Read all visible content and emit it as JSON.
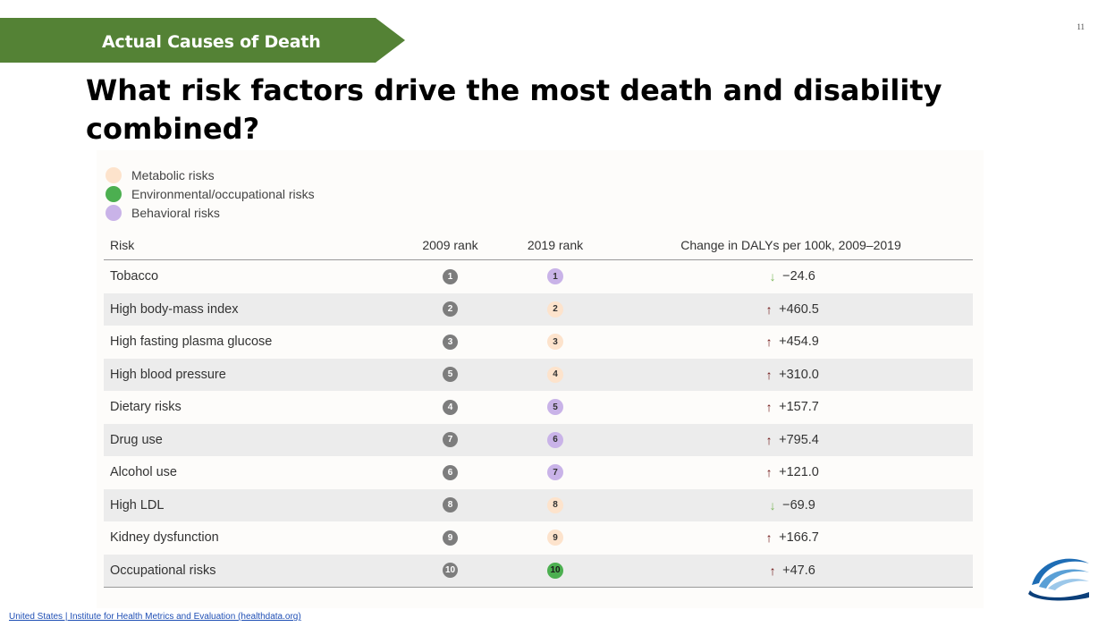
{
  "header": {
    "section_label": "Actual Causes of Death",
    "page_number": "11",
    "title": "What risk factors drive the most death and disability combined?"
  },
  "legend": [
    {
      "label": "Metabolic risks",
      "color": "#fde3cc"
    },
    {
      "label": "Environmental/occupational risks",
      "color": "#4caf50"
    },
    {
      "label": "Behavioral risks",
      "color": "#c9b3e8"
    }
  ],
  "table": {
    "columns": [
      "Risk",
      "2009 rank",
      "2019 rank",
      "Change in DALYs per 100k, 2009–2019"
    ],
    "rows": [
      {
        "risk": "Tobacco",
        "rank_2009": "1",
        "rank_2019": "1",
        "category": "behavioral",
        "direction": "down",
        "change": "−24.6"
      },
      {
        "risk": "High body-mass index",
        "rank_2009": "2",
        "rank_2019": "2",
        "category": "metabolic",
        "direction": "up",
        "change": "+460.5"
      },
      {
        "risk": "High fasting plasma glucose",
        "rank_2009": "3",
        "rank_2019": "3",
        "category": "metabolic",
        "direction": "up",
        "change": "+454.9"
      },
      {
        "risk": "High blood pressure",
        "rank_2009": "5",
        "rank_2019": "4",
        "category": "metabolic",
        "direction": "up",
        "change": "+310.0"
      },
      {
        "risk": "Dietary risks",
        "rank_2009": "4",
        "rank_2019": "5",
        "category": "behavioral",
        "direction": "up",
        "change": "+157.7"
      },
      {
        "risk": "Drug use",
        "rank_2009": "7",
        "rank_2019": "6",
        "category": "behavioral",
        "direction": "up",
        "change": "+795.4"
      },
      {
        "risk": "Alcohol use",
        "rank_2009": "6",
        "rank_2019": "7",
        "category": "behavioral",
        "direction": "up",
        "change": "+121.0"
      },
      {
        "risk": "High LDL",
        "rank_2009": "8",
        "rank_2019": "8",
        "category": "metabolic",
        "direction": "down",
        "change": "−69.9"
      },
      {
        "risk": "Kidney dysfunction",
        "rank_2009": "9",
        "rank_2019": "9",
        "category": "metabolic",
        "direction": "up",
        "change": "+166.7"
      },
      {
        "risk": "Occupational risks",
        "rank_2009": "10",
        "rank_2019": "10",
        "category": "environmental",
        "direction": "up",
        "change": "+47.6"
      }
    ]
  },
  "category_colors": {
    "metabolic": "#fde3cc",
    "environmental": "#4caf50",
    "behavioral": "#c9b3e8"
  },
  "arrow_icons": {
    "up": "↑",
    "down": "↓"
  },
  "footer": {
    "source": "United States | Institute for Health Metrics and Evaluation (healthdata.org)"
  }
}
